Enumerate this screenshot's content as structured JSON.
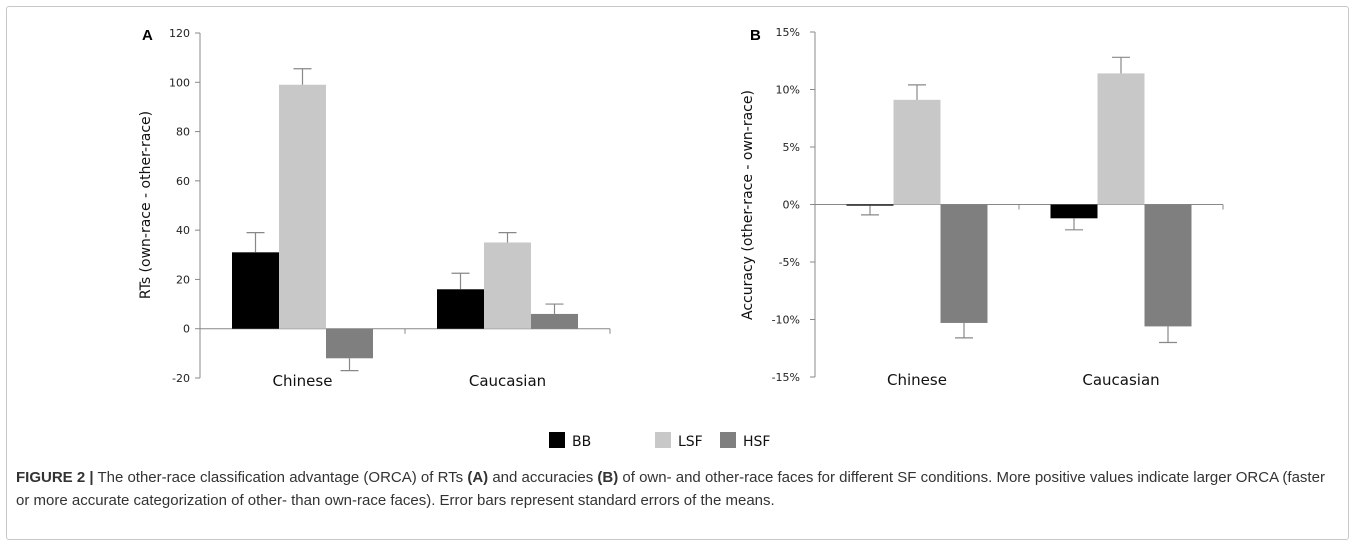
{
  "chart_data": [
    {
      "type": "bar",
      "panel_label": "A",
      "categories": [
        "Chinese",
        "Caucasian"
      ],
      "series": [
        {
          "name": "BB",
          "color": "#000000",
          "values": [
            31,
            16
          ],
          "errors": [
            8,
            6.5
          ]
        },
        {
          "name": "LSF",
          "color": "#c8c8c8",
          "values": [
            99,
            35
          ],
          "errors": [
            6.5,
            4
          ]
        },
        {
          "name": "HSF",
          "color": "#7f7f7f",
          "values": [
            -12,
            6
          ],
          "errors": [
            5,
            4
          ]
        }
      ],
      "ylabel": "RTs (own-race - other-race)",
      "ylim": [
        -20,
        120
      ],
      "yticks": [
        -20,
        0,
        20,
        40,
        60,
        80,
        100,
        120
      ],
      "ytick_labels": [
        "-20",
        "0",
        "20",
        "40",
        "60",
        "80",
        "100",
        "120"
      ],
      "grid": false,
      "legend": "bottom-center"
    },
    {
      "type": "bar",
      "panel_label": "B",
      "categories": [
        "Chinese",
        "Caucasian"
      ],
      "series": [
        {
          "name": "BB",
          "color": "#000000",
          "values": [
            -0.1,
            -1.2
          ],
          "errors": [
            0.8,
            1.0
          ]
        },
        {
          "name": "LSF",
          "color": "#c8c8c8",
          "values": [
            9.1,
            11.4
          ],
          "errors": [
            1.3,
            1.4
          ]
        },
        {
          "name": "HSF",
          "color": "#7f7f7f",
          "values": [
            -10.3,
            -10.6
          ],
          "errors": [
            1.3,
            1.4
          ]
        }
      ],
      "ylabel": "Accuracy (other-race - own-race)",
      "ylim": [
        -15,
        15
      ],
      "yticks": [
        -15,
        -10,
        -5,
        0,
        5,
        10,
        15
      ],
      "ytick_labels": [
        "-15%",
        "-10%",
        "-5%",
        "0%",
        "5%",
        "10%",
        "15%"
      ],
      "grid": false,
      "legend": "bottom-center"
    }
  ],
  "legend": {
    "items": [
      {
        "label": "BB",
        "color": "#000000"
      },
      {
        "label": "LSF",
        "color": "#c8c8c8"
      },
      {
        "label": "HSF",
        "color": "#7f7f7f"
      }
    ]
  },
  "caption": {
    "figure_label": "FIGURE 2 |",
    "part1": " The other-race classification advantage (ORCA) of RTs ",
    "bold_a": "(A)",
    "part2": " and accuracies ",
    "bold_b": "(B)",
    "part3": " of own- and other-race faces for different SF conditions. More positive values indicate larger ORCA (faster or more accurate categorization of other- than own-race faces). Error bars represent standard errors of the means."
  }
}
